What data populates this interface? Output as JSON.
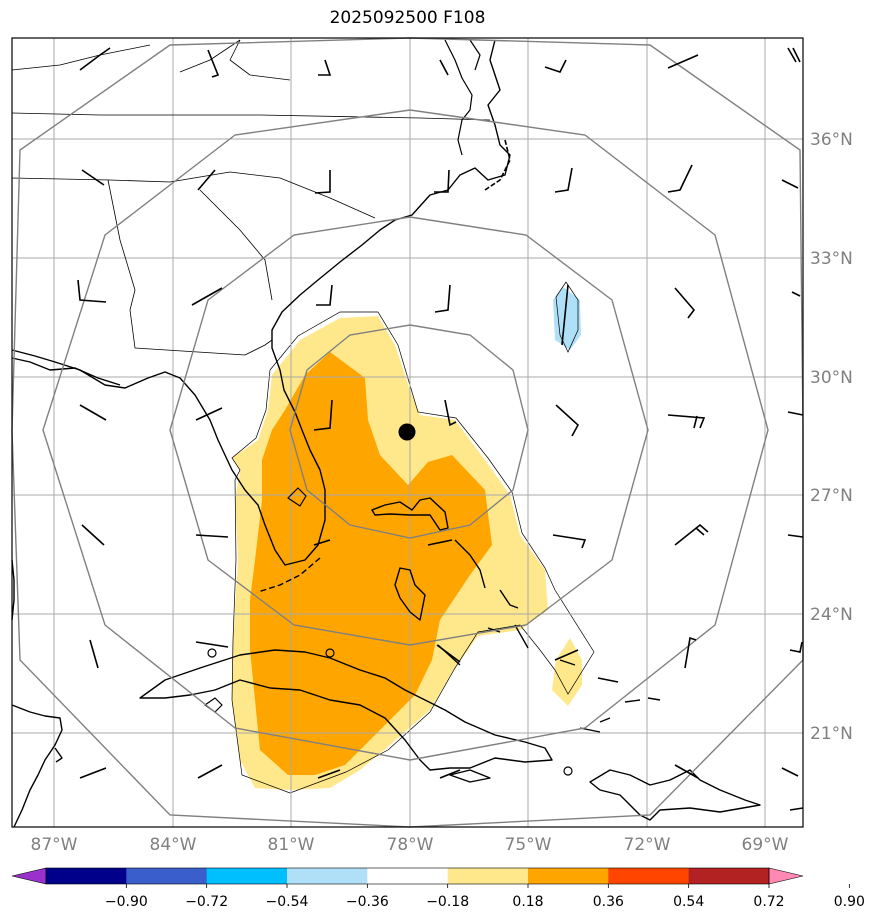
{
  "title": "2025092500 F108",
  "lat_labels": [
    "36°N",
    "33°N",
    "30°N",
    "27°N",
    "24°N",
    "21°N"
  ],
  "lon_labels": [
    "87°W",
    "84°W",
    "81°W",
    "78°W",
    "75°W",
    "72°W",
    "69°W"
  ],
  "colorbar": {
    "ticks": [
      "−0.90",
      "−0.72",
      "−0.54",
      "−0.36",
      "−0.18",
      "0.18",
      "0.36",
      "0.54",
      "0.72",
      "0.90"
    ],
    "colors": [
      "#9932cc",
      "#00008b",
      "#3a5fcd",
      "#00bfff",
      "#b0e0f7",
      "#ffffff",
      "#ffe88c",
      "#ffa500",
      "#ff4500",
      "#b22222",
      "#ff88b4"
    ]
  },
  "colors": {
    "shade_light": "#ffe88c",
    "shade_dark": "#ffa500",
    "shade_negative": "#b0e0f7",
    "grid": "#a9a9a9",
    "range_rings": "#808080",
    "coast": "#000000"
  },
  "center_marker": {
    "lat": 28.6,
    "lon": -78.0
  },
  "range_rings_count": 4
}
